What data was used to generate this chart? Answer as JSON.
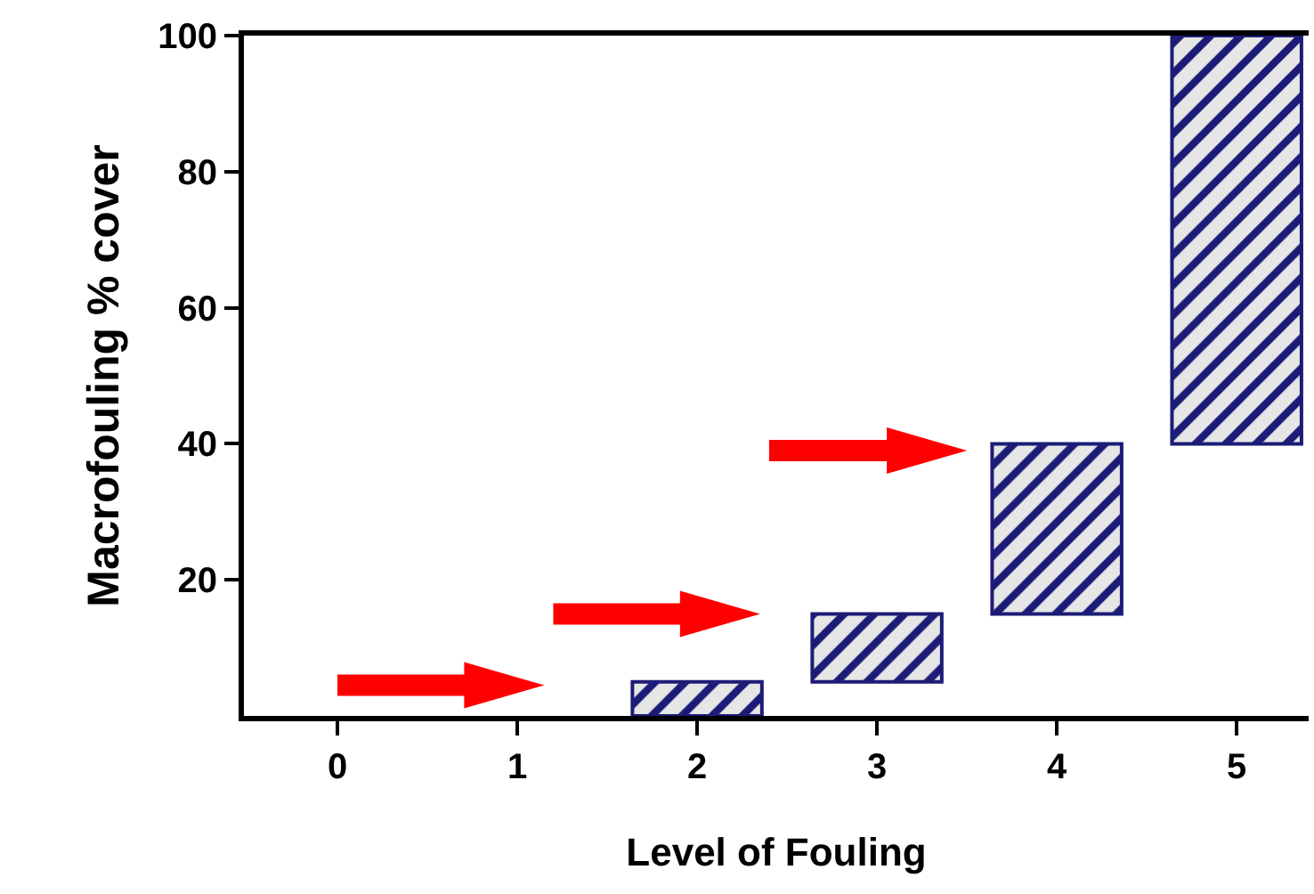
{
  "chart_data": {
    "type": "bar",
    "xlabel": "Level of Fouling",
    "ylabel": "Macrofouling % cover",
    "categories": [
      "0",
      "1",
      "2",
      "3",
      "4",
      "5"
    ],
    "base": [
      null,
      null,
      0,
      5,
      15,
      40
    ],
    "values": [
      null,
      null,
      5,
      10,
      25,
      60
    ],
    "color": "#1c1c78",
    "ylim": [
      0,
      100
    ],
    "yticks": [
      20,
      40,
      60,
      80,
      100
    ],
    "grid": false,
    "legend": false
  }
}
